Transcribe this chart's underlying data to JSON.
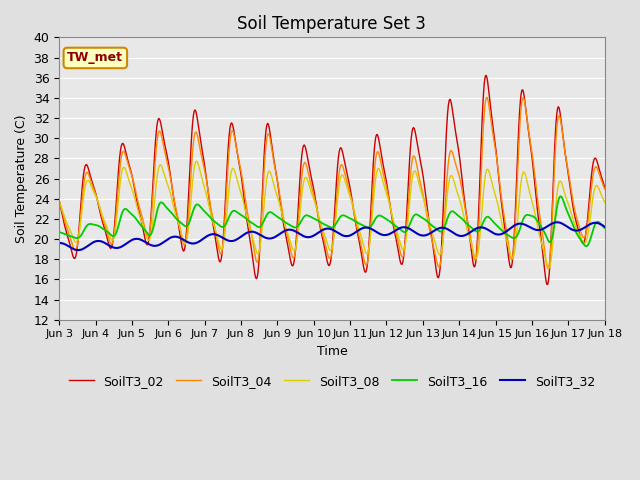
{
  "title": "Soil Temperature Set 3",
  "xlabel": "Time",
  "ylabel": "Soil Temperature (C)",
  "ylim": [
    12,
    40
  ],
  "yticks": [
    12,
    14,
    16,
    18,
    20,
    22,
    24,
    26,
    28,
    30,
    32,
    34,
    36,
    38,
    40
  ],
  "xtick_labels": [
    "Jun 3",
    "Jun 4",
    "Jun 5",
    "Jun 6",
    "Jun 7",
    "Jun 8",
    "Jun 9",
    "Jun 10",
    "Jun 11",
    "Jun 12",
    "Jun 13",
    "Jun 14",
    "Jun 15",
    "Jun 16",
    "Jun 17",
    "Jun 18"
  ],
  "annotation_text": "TW_met",
  "annotation_color": "#8B0000",
  "annotation_bg": "#FFFFC0",
  "annotation_border": "#CC8800",
  "series_names": [
    "SoilT3_02",
    "SoilT3_04",
    "SoilT3_08",
    "SoilT3_16",
    "SoilT3_32"
  ],
  "series_colors": [
    "#CC0000",
    "#FF8800",
    "#DDCC00",
    "#00CC00",
    "#0000BB"
  ],
  "bg_color": "#E0E0E0",
  "plot_bg_color": "#E8E8E8",
  "title_fontsize": 12,
  "axis_fontsize": 9,
  "legend_fontsize": 9,
  "grid_color": "#FFFFFF"
}
